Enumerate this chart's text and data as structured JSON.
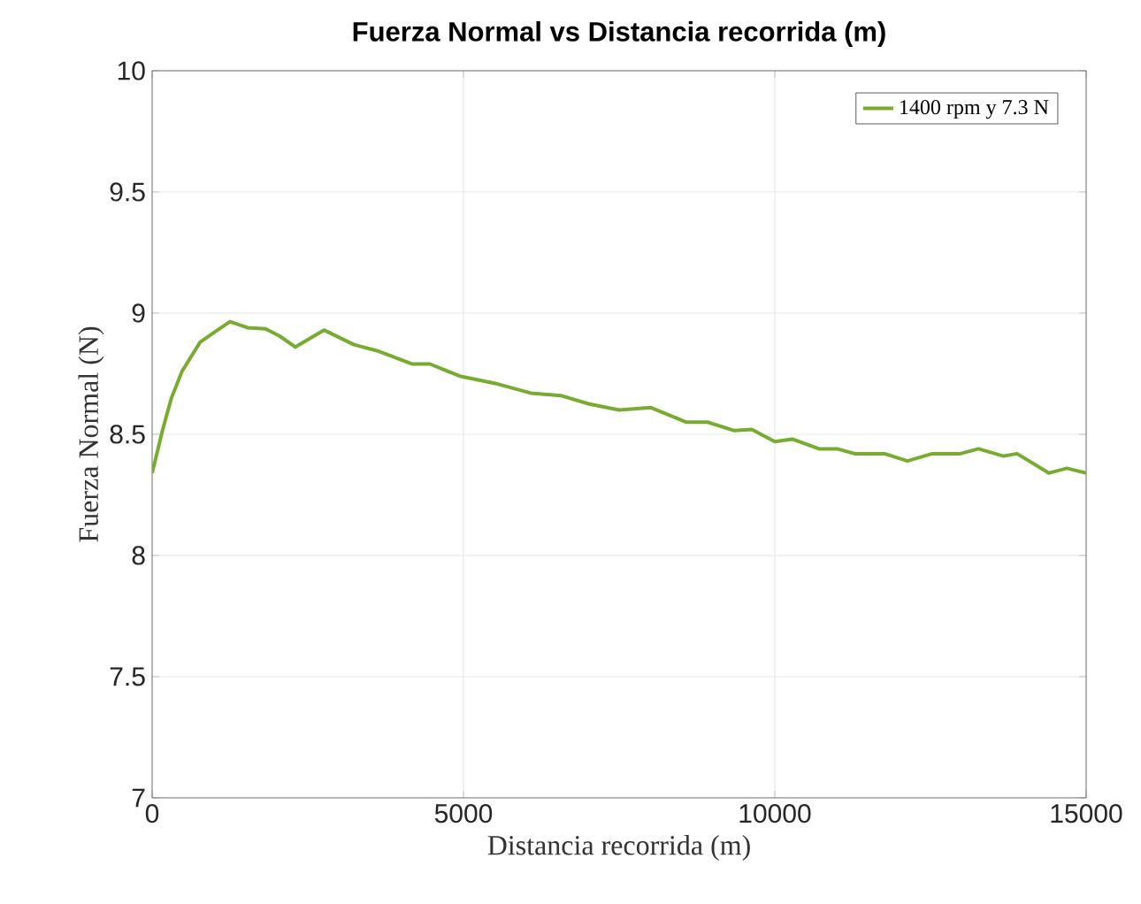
{
  "chart_data": {
    "type": "line",
    "title": "Fuerza Normal vs Distancia recorrida (m)",
    "xlabel": "Distancia recorrida (m)",
    "ylabel": "Fuerza Normal (N)",
    "xlim": [
      0,
      15000
    ],
    "ylim": [
      7,
      10
    ],
    "xticks": [
      0,
      5000,
      10000,
      15000
    ],
    "yticks": [
      7,
      7.5,
      8,
      8.5,
      9,
      9.5,
      10
    ],
    "grid": true,
    "legend": "top right",
    "series": [
      {
        "name": "1400 rpm y 7.3 N",
        "color": "#77ac30",
        "x": [
          0,
          170,
          310,
          480,
          770,
          1050,
          1250,
          1530,
          1820,
          2050,
          2300,
          2760,
          3240,
          3610,
          4180,
          4460,
          4940,
          5510,
          6080,
          6560,
          7020,
          7500,
          8010,
          8580,
          8920,
          9350,
          9630,
          10000,
          10280,
          10710,
          11000,
          11280,
          11760,
          12130,
          12530,
          12980,
          13270,
          13670,
          13890,
          14400,
          14690,
          15000
        ],
        "values": [
          8.34,
          8.52,
          8.65,
          8.76,
          8.88,
          8.93,
          8.965,
          8.94,
          8.935,
          8.905,
          8.86,
          8.93,
          8.87,
          8.845,
          8.79,
          8.79,
          8.74,
          8.71,
          8.67,
          8.66,
          8.625,
          8.6,
          8.61,
          8.55,
          8.55,
          8.515,
          8.52,
          8.47,
          8.48,
          8.44,
          8.44,
          8.42,
          8.42,
          8.39,
          8.42,
          8.42,
          8.44,
          8.41,
          8.42,
          8.34,
          8.36,
          8.34
        ]
      }
    ]
  }
}
